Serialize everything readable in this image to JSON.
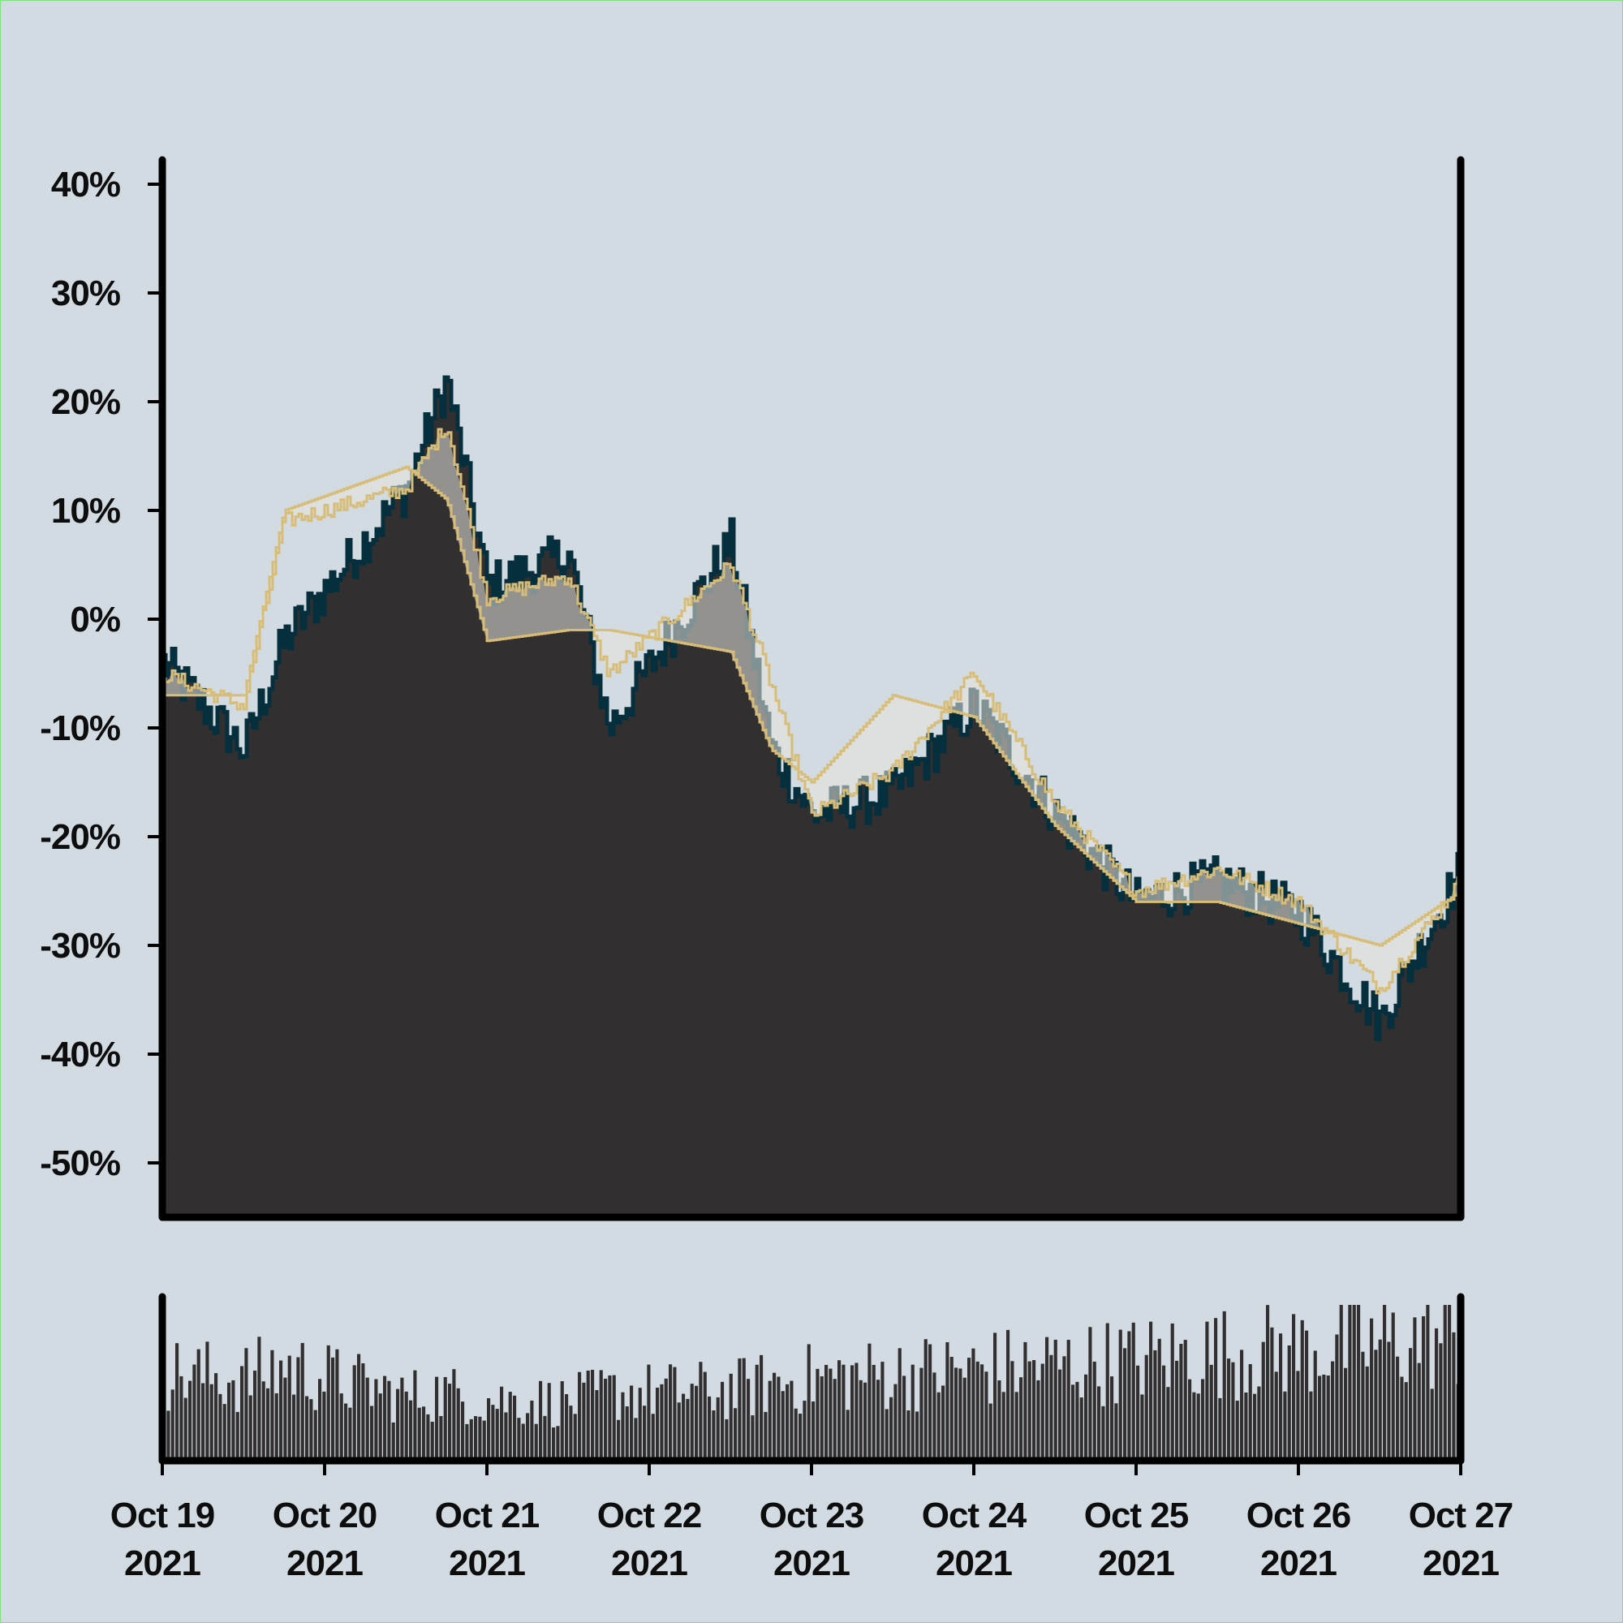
{
  "colors": {
    "background": "#d2dbe1",
    "area_fill": "#312f2f",
    "area_line": "#062f3d",
    "ma_line": "#d8bd78",
    "axis": "#000000"
  },
  "chart_data": [
    {
      "type": "area",
      "panel": "price",
      "title": "",
      "xlabel": "",
      "ylabel": "",
      "ylim": [
        -55,
        45
      ],
      "yticks": [
        40,
        30,
        20,
        10,
        0,
        -10,
        -20,
        -30,
        -40,
        -50
      ],
      "ytick_labels": [
        "40%",
        "30%",
        "20%",
        "10%",
        "0%",
        "-10%",
        "-20%",
        "-30%",
        "-40%",
        "-50%"
      ],
      "xlim": [
        "2021-10-19",
        "2021-10-27"
      ],
      "x": [
        "2021-10-19T00:00",
        "2021-10-19T12:00",
        "2021-10-19T18:00",
        "2021-10-20T12:00",
        "2021-10-20T18:00",
        "2021-10-21T00:00",
        "2021-10-21T12:00",
        "2021-10-21T18:00",
        "2021-10-22T12:00",
        "2021-10-22T18:00",
        "2021-10-23T00:00",
        "2021-10-23T12:00",
        "2021-10-24T00:00",
        "2021-10-24T12:00",
        "2021-10-25T00:00",
        "2021-10-25T12:00",
        "2021-10-26T00:00",
        "2021-10-26T12:00",
        "2021-10-27T00:00"
      ],
      "series": [
        {
          "role": "price",
          "values": [
            -4,
            -12,
            -2,
            12,
            22,
            3,
            6,
            -10,
            7,
            -12,
            -18,
            -16,
            -8,
            -18,
            -26,
            -24,
            -27,
            -37,
            -23
          ]
        },
        {
          "role": "moving-average-fast",
          "values": [
            -5,
            -8,
            9,
            12,
            18,
            2,
            4,
            -5,
            5,
            -6,
            -18,
            -14,
            -5,
            -17,
            -25,
            -23,
            -26,
            -34,
            -24
          ]
        },
        {
          "role": "moving-average-slow",
          "values": [
            -7,
            -7,
            10,
            14,
            11,
            -2,
            -1,
            -1,
            -3,
            -12,
            -15,
            -7,
            -9,
            -19,
            -26,
            -26,
            -28,
            -30,
            -25
          ]
        }
      ]
    },
    {
      "type": "bar",
      "panel": "volume",
      "values": [
        75,
        70,
        80,
        55,
        58,
        52,
        50,
        58,
        60,
        66,
        70,
        74,
        78,
        82,
        86,
        92,
        95,
        100,
        105
      ],
      "ylim": [
        0,
        140
      ]
    }
  ],
  "x_axis": {
    "tick_labels": [
      [
        "Oct 19",
        "2021"
      ],
      [
        "Oct 20",
        "2021"
      ],
      [
        "Oct 21",
        "2021"
      ],
      [
        "Oct 22",
        "2021"
      ],
      [
        "Oct 23",
        "2021"
      ],
      [
        "Oct 24",
        "2021"
      ],
      [
        "Oct 25",
        "2021"
      ],
      [
        "Oct 26",
        "2021"
      ],
      [
        "Oct 27",
        "2021"
      ]
    ]
  }
}
